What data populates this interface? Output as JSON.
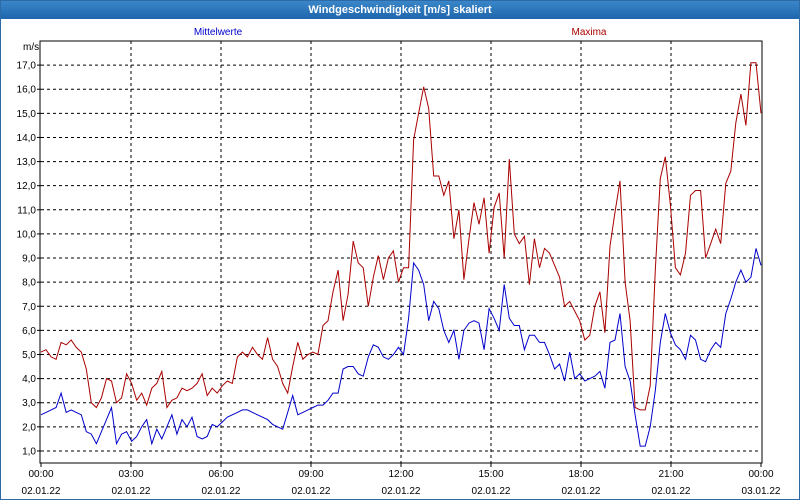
{
  "window": {
    "title": "Windgeschwindigkeit [m/s] skaliert"
  },
  "colors": {
    "mean": "#0000cc",
    "max": "#aa0000",
    "frame": "#2c6aa8"
  },
  "chart_data": {
    "type": "line",
    "title": "Windgeschwindigkeit [m/s] skaliert",
    "ylabel": "m/s",
    "xlabel": "",
    "ylim": [
      0.5,
      18.0
    ],
    "xlim": [
      0,
      24
    ],
    "grid": true,
    "y_ticks": [
      "1,0",
      "2,0",
      "3,0",
      "4,0",
      "5,0",
      "6,0",
      "7,0",
      "8,0",
      "9,0",
      "10,0",
      "11,0",
      "12,0",
      "13,0",
      "14,0",
      "15,0",
      "16,0",
      "17,0"
    ],
    "x_ticks": [
      {
        "time": "00:00",
        "date": "02.01.22"
      },
      {
        "time": "03:00",
        "date": "02.01.22"
      },
      {
        "time": "06:00",
        "date": "02.01.22"
      },
      {
        "time": "09:00",
        "date": "02.01.22"
      },
      {
        "time": "12:00",
        "date": "02.01.22"
      },
      {
        "time": "15:00",
        "date": "02.01.22"
      },
      {
        "time": "18:00",
        "date": "02.01.22"
      },
      {
        "time": "21:00",
        "date": "02.01.22"
      },
      {
        "time": "00:00",
        "date": "03.01.22"
      }
    ],
    "series": [
      {
        "name": "Mittelwerte",
        "values": [
          2.5,
          2.6,
          2.7,
          2.8,
          3.4,
          2.6,
          2.7,
          2.6,
          2.5,
          1.8,
          1.7,
          1.3,
          1.8,
          2.3,
          2.8,
          1.3,
          1.7,
          1.8,
          1.4,
          1.6,
          2.0,
          2.3,
          1.3,
          1.9,
          1.5,
          2.0,
          2.5,
          1.7,
          2.3,
          2.0,
          2.4,
          1.6,
          1.5,
          1.6,
          2.1,
          2.0,
          2.2,
          2.4,
          2.5,
          2.6,
          2.7,
          2.7,
          2.6,
          2.5,
          2.4,
          2.3,
          2.1,
          2.0,
          1.9,
          2.6,
          3.3,
          2.5,
          2.6,
          2.7,
          2.8,
          2.9,
          2.9,
          3.1,
          3.4,
          3.4,
          4.4,
          4.5,
          4.5,
          4.2,
          4.1,
          4.9,
          5.4,
          5.3,
          4.9,
          4.8,
          5.0,
          5.3,
          5.0,
          6.5,
          8.8,
          8.5,
          7.9,
          6.4,
          7.2,
          6.9,
          6.0,
          5.5,
          6.0,
          4.8,
          6.0,
          6.3,
          6.4,
          6.3,
          5.2,
          6.9,
          6.5,
          6.0,
          7.9,
          6.5,
          6.2,
          6.2,
          5.2,
          5.8,
          5.8,
          5.5,
          5.5,
          5.0,
          4.4,
          4.6,
          3.9,
          5.1,
          4.0,
          4.2,
          3.9,
          4.0,
          4.1,
          4.3,
          3.6,
          5.5,
          5.6,
          6.7,
          4.5,
          3.9,
          2.5,
          1.2,
          1.2,
          2.0,
          3.5,
          5.5,
          6.7,
          5.9,
          5.4,
          5.2,
          4.8,
          5.8,
          5.6,
          4.8,
          4.7,
          5.2,
          5.5,
          5.3,
          6.7,
          7.3,
          8.0,
          8.5,
          8.0,
          8.2,
          9.4,
          8.7
        ]
      },
      {
        "name": "Maxima",
        "values": [
          5.1,
          5.2,
          4.9,
          4.8,
          5.5,
          5.4,
          5.6,
          5.3,
          5.1,
          4.4,
          3.0,
          2.8,
          3.2,
          4.0,
          3.9,
          3.0,
          3.2,
          4.2,
          3.8,
          3.1,
          3.4,
          2.9,
          3.6,
          3.8,
          4.3,
          2.8,
          3.1,
          3.2,
          3.6,
          3.5,
          3.6,
          3.8,
          4.2,
          3.3,
          3.6,
          3.4,
          3.7,
          3.9,
          3.8,
          4.9,
          5.1,
          4.9,
          5.3,
          5.0,
          4.8,
          5.7,
          4.8,
          4.5,
          3.8,
          3.4,
          4.5,
          5.5,
          4.8,
          5.0,
          5.1,
          5.0,
          6.2,
          6.4,
          7.6,
          8.5,
          6.4,
          7.5,
          9.7,
          8.8,
          8.6,
          7.0,
          8.2,
          9.1,
          8.1,
          9.0,
          9.3,
          8.0,
          8.6,
          8.6,
          13.9,
          15.0,
          16.1,
          15.2,
          12.4,
          12.4,
          11.6,
          12.2,
          9.8,
          11.0,
          8.1,
          9.8,
          11.3,
          10.4,
          11.5,
          9.2,
          11.1,
          11.7,
          9.0,
          13.1,
          10.0,
          9.6,
          9.9,
          7.9,
          9.8,
          8.6,
          9.4,
          9.2,
          8.7,
          8.2,
          7.0,
          7.2,
          6.8,
          6.4,
          5.6,
          5.8,
          7.0,
          7.6,
          5.9,
          9.5,
          10.9,
          12.2,
          8.0,
          6.4,
          2.8,
          2.7,
          2.7,
          3.7,
          8.5,
          12.3,
          13.2,
          11.2,
          8.6,
          8.3,
          9.2,
          11.6,
          11.8,
          11.8,
          9.0,
          9.6,
          10.2,
          9.6,
          12.1,
          12.6,
          14.6,
          15.8,
          14.5,
          17.1,
          17.1,
          15.0
        ]
      }
    ]
  }
}
